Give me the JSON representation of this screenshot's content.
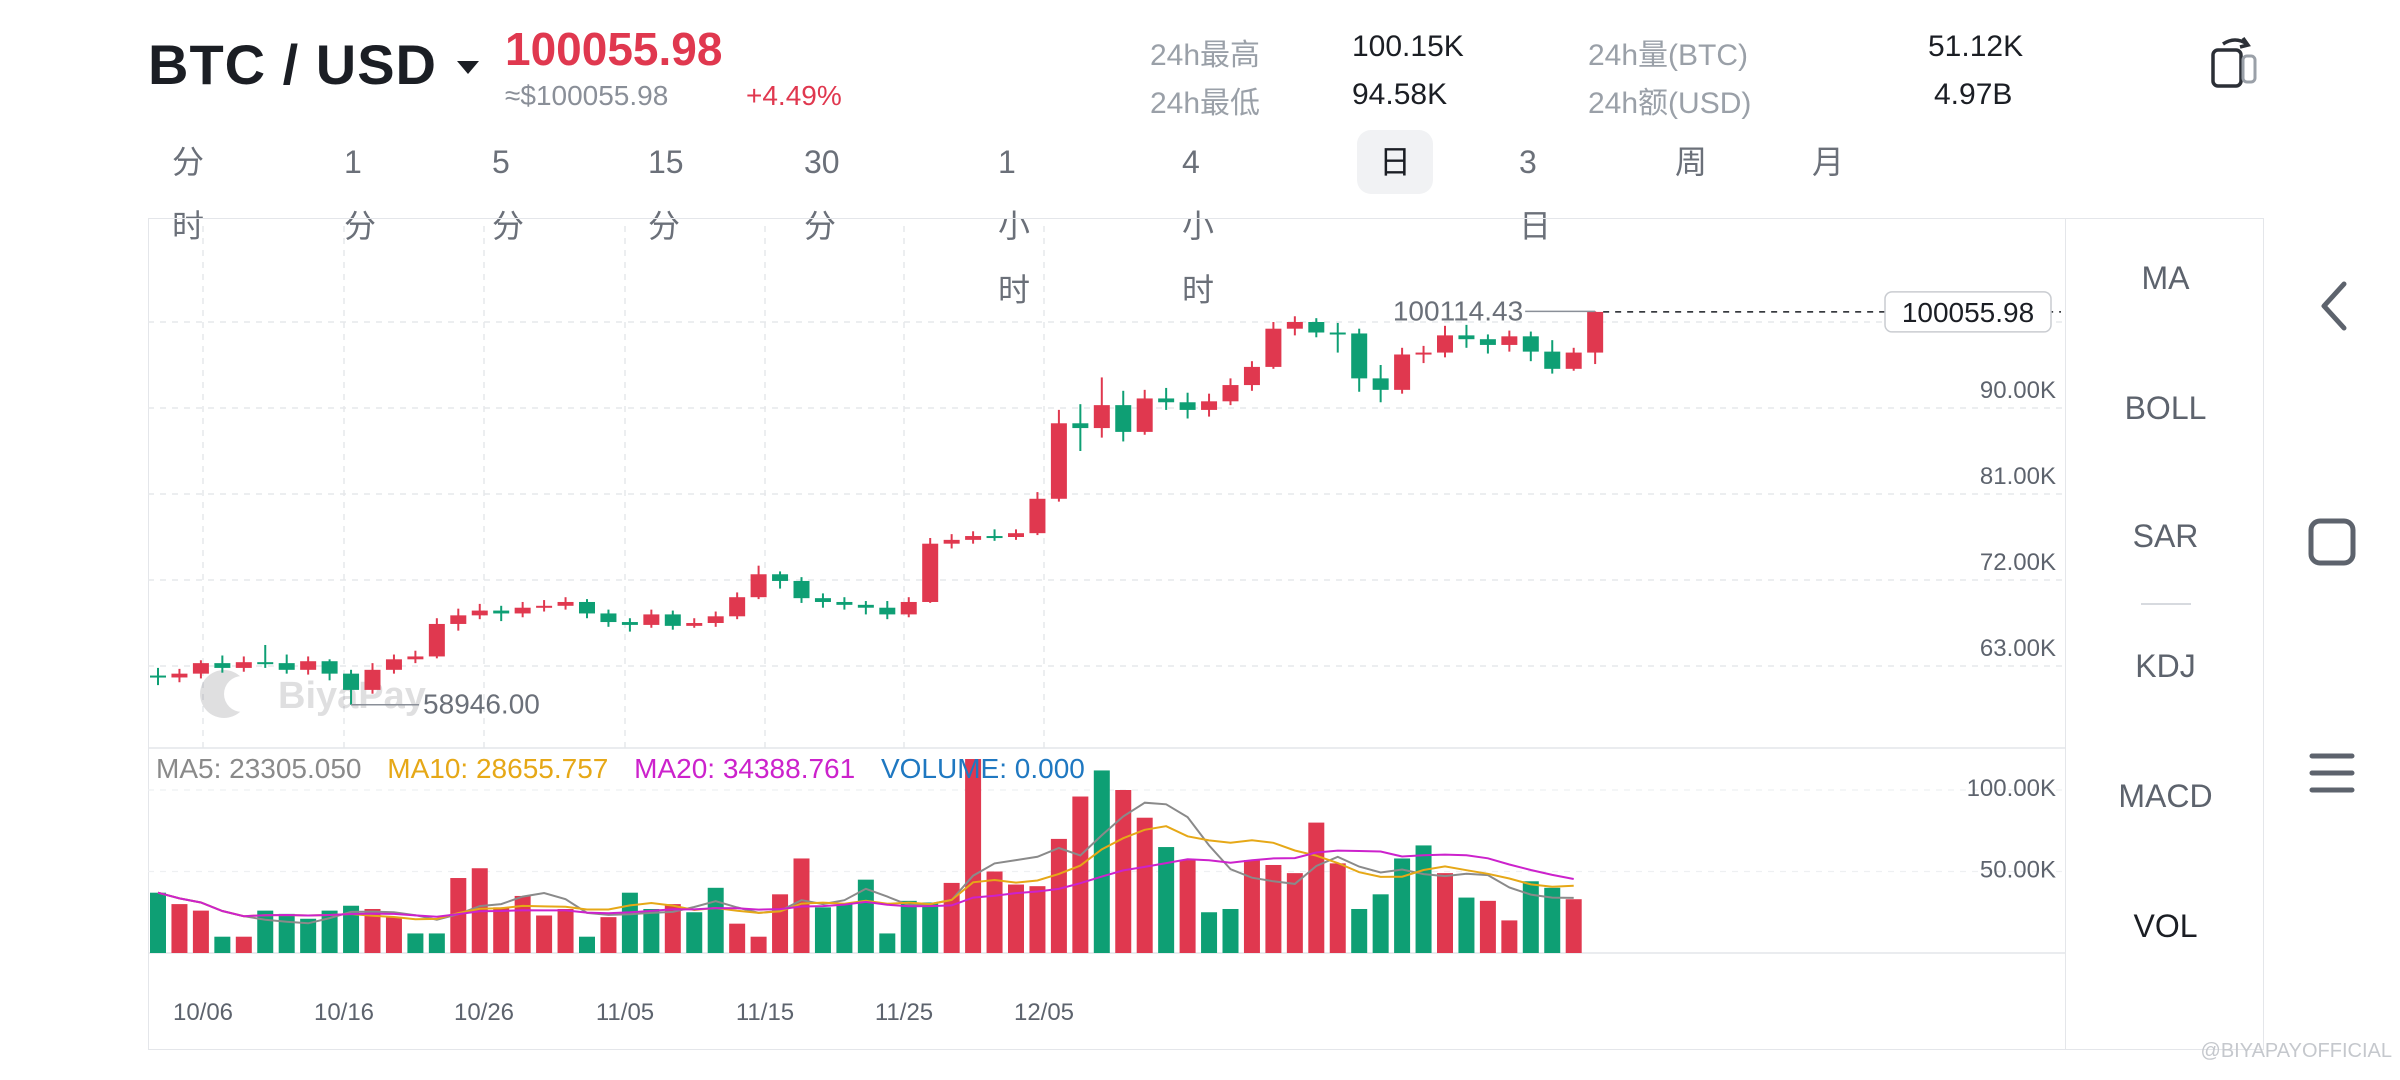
{
  "header": {
    "pair": "BTC / USD",
    "price": "100055.98",
    "price_usd": "≈$100055.98",
    "change": "+4.49%",
    "stats": {
      "high_label": "24h最高",
      "high_value": "100.15K",
      "low_label": "24h最低",
      "low_value": "94.58K",
      "vol_btc_label": "24h量(BTC)",
      "vol_btc_value": "51.12K",
      "vol_usd_label": "24h额(USD)",
      "vol_usd_value": "4.97B"
    }
  },
  "tabs": [
    {
      "label": "分时"
    },
    {
      "label": "1分"
    },
    {
      "label": "5分"
    },
    {
      "label": "15分"
    },
    {
      "label": "30分"
    },
    {
      "label": "1小时"
    },
    {
      "label": "4小时"
    },
    {
      "label": "日",
      "active": true
    },
    {
      "label": "3日"
    },
    {
      "label": "周"
    },
    {
      "label": "月"
    }
  ],
  "indicators": [
    {
      "label": "MA"
    },
    {
      "label": "BOLL"
    },
    {
      "label": "SAR"
    },
    {
      "label": "KDJ"
    },
    {
      "label": "MACD"
    },
    {
      "label": "VOL",
      "active": true
    }
  ],
  "volume_legend": {
    "ma5": "MA5: 23305.050",
    "ma10": "MA10: 28655.757",
    "ma20": "MA20: 34388.761",
    "volume": "VOLUME: 0.000"
  },
  "markers": {
    "high": "100114.43",
    "low": "58946.00",
    "current": "100055.98"
  },
  "watermark": "@BIYAPAYOFFICIAL",
  "logo_text": "BiyaPay",
  "colors": {
    "up": "#e0384f",
    "down": "#0e9f74",
    "ma5": "#8a8a8a",
    "ma10": "#e6a817",
    "ma20": "#cc22cc",
    "volume": "#1f78c1"
  },
  "chart_data": {
    "type": "candlestick",
    "price_axis_ticks": [
      "90.00K",
      "81.00K",
      "72.00K",
      "63.00K"
    ],
    "price_axis_values": [
      90000,
      81000,
      72000,
      63000
    ],
    "volume_axis_ticks": [
      "100.00K",
      "50.00K"
    ],
    "volume_axis_values": [
      100000,
      50000
    ],
    "date_ticks": [
      "10/06",
      "10/16",
      "10/26",
      "11/05",
      "11/15",
      "11/25",
      "12/05"
    ],
    "candles": [
      {
        "o": 62000,
        "c": 61800,
        "h": 62800,
        "l": 61000
      },
      {
        "o": 61800,
        "c": 62200,
        "h": 62700,
        "l": 61300
      },
      {
        "o": 62200,
        "c": 63300,
        "h": 63600,
        "l": 61700
      },
      {
        "o": 63300,
        "c": 62800,
        "h": 64100,
        "l": 62300
      },
      {
        "o": 62800,
        "c": 63400,
        "h": 64000,
        "l": 62400
      },
      {
        "o": 63400,
        "c": 63300,
        "h": 65200,
        "l": 62800
      },
      {
        "o": 63300,
        "c": 62600,
        "h": 64200,
        "l": 62200
      },
      {
        "o": 62600,
        "c": 63500,
        "h": 64000,
        "l": 62100
      },
      {
        "o": 63500,
        "c": 62200,
        "h": 63700,
        "l": 61500
      },
      {
        "o": 62200,
        "c": 60500,
        "h": 62600,
        "l": 58946
      },
      {
        "o": 60500,
        "c": 62600,
        "h": 63300,
        "l": 60100
      },
      {
        "o": 62600,
        "c": 63700,
        "h": 64200,
        "l": 62200
      },
      {
        "o": 63700,
        "c": 64000,
        "h": 64600,
        "l": 63300
      },
      {
        "o": 64000,
        "c": 67400,
        "h": 68000,
        "l": 63800
      },
      {
        "o": 67400,
        "c": 68300,
        "h": 69000,
        "l": 66700
      },
      {
        "o": 68300,
        "c": 68800,
        "h": 69500,
        "l": 67900
      },
      {
        "o": 68800,
        "c": 68500,
        "h": 69300,
        "l": 67700
      },
      {
        "o": 68500,
        "c": 69100,
        "h": 69700,
        "l": 68100
      },
      {
        "o": 69100,
        "c": 69300,
        "h": 69900,
        "l": 68700
      },
      {
        "o": 69300,
        "c": 69700,
        "h": 70200,
        "l": 68900
      },
      {
        "o": 69700,
        "c": 68500,
        "h": 70000,
        "l": 68000
      },
      {
        "o": 68500,
        "c": 67600,
        "h": 68900,
        "l": 67100
      },
      {
        "o": 67600,
        "c": 67300,
        "h": 68000,
        "l": 66600
      },
      {
        "o": 67300,
        "c": 68400,
        "h": 68900,
        "l": 67000
      },
      {
        "o": 68400,
        "c": 67200,
        "h": 68800,
        "l": 66800
      },
      {
        "o": 67200,
        "c": 67500,
        "h": 68000,
        "l": 67000
      },
      {
        "o": 67500,
        "c": 68200,
        "h": 68700,
        "l": 67100
      },
      {
        "o": 68200,
        "c": 70200,
        "h": 70700,
        "l": 67900
      },
      {
        "o": 70200,
        "c": 72600,
        "h": 73500,
        "l": 70000
      },
      {
        "o": 72600,
        "c": 71900,
        "h": 72900,
        "l": 71100
      },
      {
        "o": 71900,
        "c": 70100,
        "h": 72300,
        "l": 69600
      },
      {
        "o": 70100,
        "c": 69700,
        "h": 70600,
        "l": 69100
      },
      {
        "o": 69700,
        "c": 69400,
        "h": 70200,
        "l": 68900
      },
      {
        "o": 69400,
        "c": 69100,
        "h": 69800,
        "l": 68400
      },
      {
        "o": 69100,
        "c": 68400,
        "h": 69800,
        "l": 67900
      },
      {
        "o": 68400,
        "c": 69700,
        "h": 70200,
        "l": 68100
      },
      {
        "o": 69700,
        "c": 75800,
        "h": 76400,
        "l": 69600
      },
      {
        "o": 75800,
        "c": 76200,
        "h": 76800,
        "l": 75300
      },
      {
        "o": 76200,
        "c": 76600,
        "h": 77100,
        "l": 75800
      },
      {
        "o": 76600,
        "c": 76500,
        "h": 77300,
        "l": 76100
      },
      {
        "o": 76500,
        "c": 76900,
        "h": 77300,
        "l": 76200
      },
      {
        "o": 76900,
        "c": 80500,
        "h": 81200,
        "l": 76700
      },
      {
        "o": 80500,
        "c": 88400,
        "h": 89800,
        "l": 80200
      },
      {
        "o": 88400,
        "c": 87900,
        "h": 90400,
        "l": 85500
      },
      {
        "o": 87900,
        "c": 90300,
        "h": 93200,
        "l": 86900
      },
      {
        "o": 90300,
        "c": 87500,
        "h": 91800,
        "l": 86500
      },
      {
        "o": 87500,
        "c": 91000,
        "h": 91900,
        "l": 87200
      },
      {
        "o": 91000,
        "c": 90600,
        "h": 92100,
        "l": 89800
      },
      {
        "o": 90600,
        "c": 89800,
        "h": 91600,
        "l": 88900
      },
      {
        "o": 89800,
        "c": 90700,
        "h": 91500,
        "l": 89100
      },
      {
        "o": 90700,
        "c": 92400,
        "h": 93100,
        "l": 90300
      },
      {
        "o": 92400,
        "c": 94300,
        "h": 94900,
        "l": 91800
      },
      {
        "o": 94300,
        "c": 98300,
        "h": 99000,
        "l": 94100
      },
      {
        "o": 98300,
        "c": 99000,
        "h": 99600,
        "l": 97600
      },
      {
        "o": 99000,
        "c": 97900,
        "h": 99400,
        "l": 97400
      },
      {
        "o": 97900,
        "c": 97800,
        "h": 98900,
        "l": 95800
      },
      {
        "o": 97800,
        "c": 93100,
        "h": 98300,
        "l": 91700
      },
      {
        "o": 93100,
        "c": 91900,
        "h": 94500,
        "l": 90600
      },
      {
        "o": 91900,
        "c": 95600,
        "h": 96300,
        "l": 91500
      },
      {
        "o": 95600,
        "c": 95800,
        "h": 96500,
        "l": 94700
      },
      {
        "o": 95800,
        "c": 97600,
        "h": 98600,
        "l": 95300
      },
      {
        "o": 97600,
        "c": 97200,
        "h": 98700,
        "l": 96300
      },
      {
        "o": 97200,
        "c": 96600,
        "h": 97700,
        "l": 95700
      },
      {
        "o": 96600,
        "c": 97500,
        "h": 98100,
        "l": 95900
      },
      {
        "o": 97500,
        "c": 95900,
        "h": 98000,
        "l": 94900
      },
      {
        "o": 95900,
        "c": 94100,
        "h": 97100,
        "l": 93600
      },
      {
        "o": 94100,
        "c": 95800,
        "h": 96300,
        "l": 93900
      },
      {
        "o": 95800,
        "c": 100055.98,
        "h": 100114.43,
        "l": 94600
      }
    ],
    "volumes": [
      {
        "v": 37000,
        "up": false
      },
      {
        "v": 30000,
        "up": true
      },
      {
        "v": 26000,
        "up": true
      },
      {
        "v": 10000,
        "up": false
      },
      {
        "v": 10000,
        "up": true
      },
      {
        "v": 26000,
        "up": false
      },
      {
        "v": 24000,
        "up": false
      },
      {
        "v": 21000,
        "up": false
      },
      {
        "v": 26000,
        "up": false
      },
      {
        "v": 29000,
        "up": false
      },
      {
        "v": 27000,
        "up": true
      },
      {
        "v": 22000,
        "up": true
      },
      {
        "v": 12000,
        "up": false
      },
      {
        "v": 12000,
        "up": false
      },
      {
        "v": 46000,
        "up": true
      },
      {
        "v": 52000,
        "up": true
      },
      {
        "v": 28000,
        "up": true
      },
      {
        "v": 35000,
        "up": true
      },
      {
        "v": 23000,
        "up": true
      },
      {
        "v": 27000,
        "up": true
      },
      {
        "v": 10000,
        "up": false
      },
      {
        "v": 22000,
        "up": true
      },
      {
        "v": 37000,
        "up": false
      },
      {
        "v": 27000,
        "up": false
      },
      {
        "v": 30000,
        "up": true
      },
      {
        "v": 25000,
        "up": false
      },
      {
        "v": 40000,
        "up": false
      },
      {
        "v": 18000,
        "up": true
      },
      {
        "v": 10000,
        "up": true
      },
      {
        "v": 36000,
        "up": true
      },
      {
        "v": 58000,
        "up": true
      },
      {
        "v": 28000,
        "up": false
      },
      {
        "v": 30000,
        "up": false
      },
      {
        "v": 45000,
        "up": false
      },
      {
        "v": 12000,
        "up": false
      },
      {
        "v": 32000,
        "up": false
      },
      {
        "v": 31000,
        "up": false
      },
      {
        "v": 43000,
        "up": true
      },
      {
        "v": 119000,
        "up": true
      },
      {
        "v": 50000,
        "up": true
      },
      {
        "v": 42000,
        "up": true
      },
      {
        "v": 41000,
        "up": true
      },
      {
        "v": 70000,
        "up": true
      },
      {
        "v": 96000,
        "up": true
      },
      {
        "v": 112000,
        "up": false
      },
      {
        "v": 100000,
        "up": true
      },
      {
        "v": 83000,
        "up": true
      },
      {
        "v": 65000,
        "up": false
      },
      {
        "v": 57000,
        "up": true
      },
      {
        "v": 25000,
        "up": false
      },
      {
        "v": 27000,
        "up": false
      },
      {
        "v": 57000,
        "up": true
      },
      {
        "v": 54000,
        "up": true
      },
      {
        "v": 49000,
        "up": true
      },
      {
        "v": 80000,
        "up": true
      },
      {
        "v": 55000,
        "up": true
      },
      {
        "v": 27000,
        "up": false
      },
      {
        "v": 36000,
        "up": false
      },
      {
        "v": 58000,
        "up": false
      },
      {
        "v": 66000,
        "up": false
      },
      {
        "v": 49000,
        "up": true
      },
      {
        "v": 34000,
        "up": false
      },
      {
        "v": 32000,
        "up": true
      },
      {
        "v": 20000,
        "up": true
      },
      {
        "v": 44000,
        "up": false
      },
      {
        "v": 40000,
        "up": false
      },
      {
        "v": 33000,
        "up": true
      },
      {
        "v": 0,
        "up": true
      }
    ]
  }
}
